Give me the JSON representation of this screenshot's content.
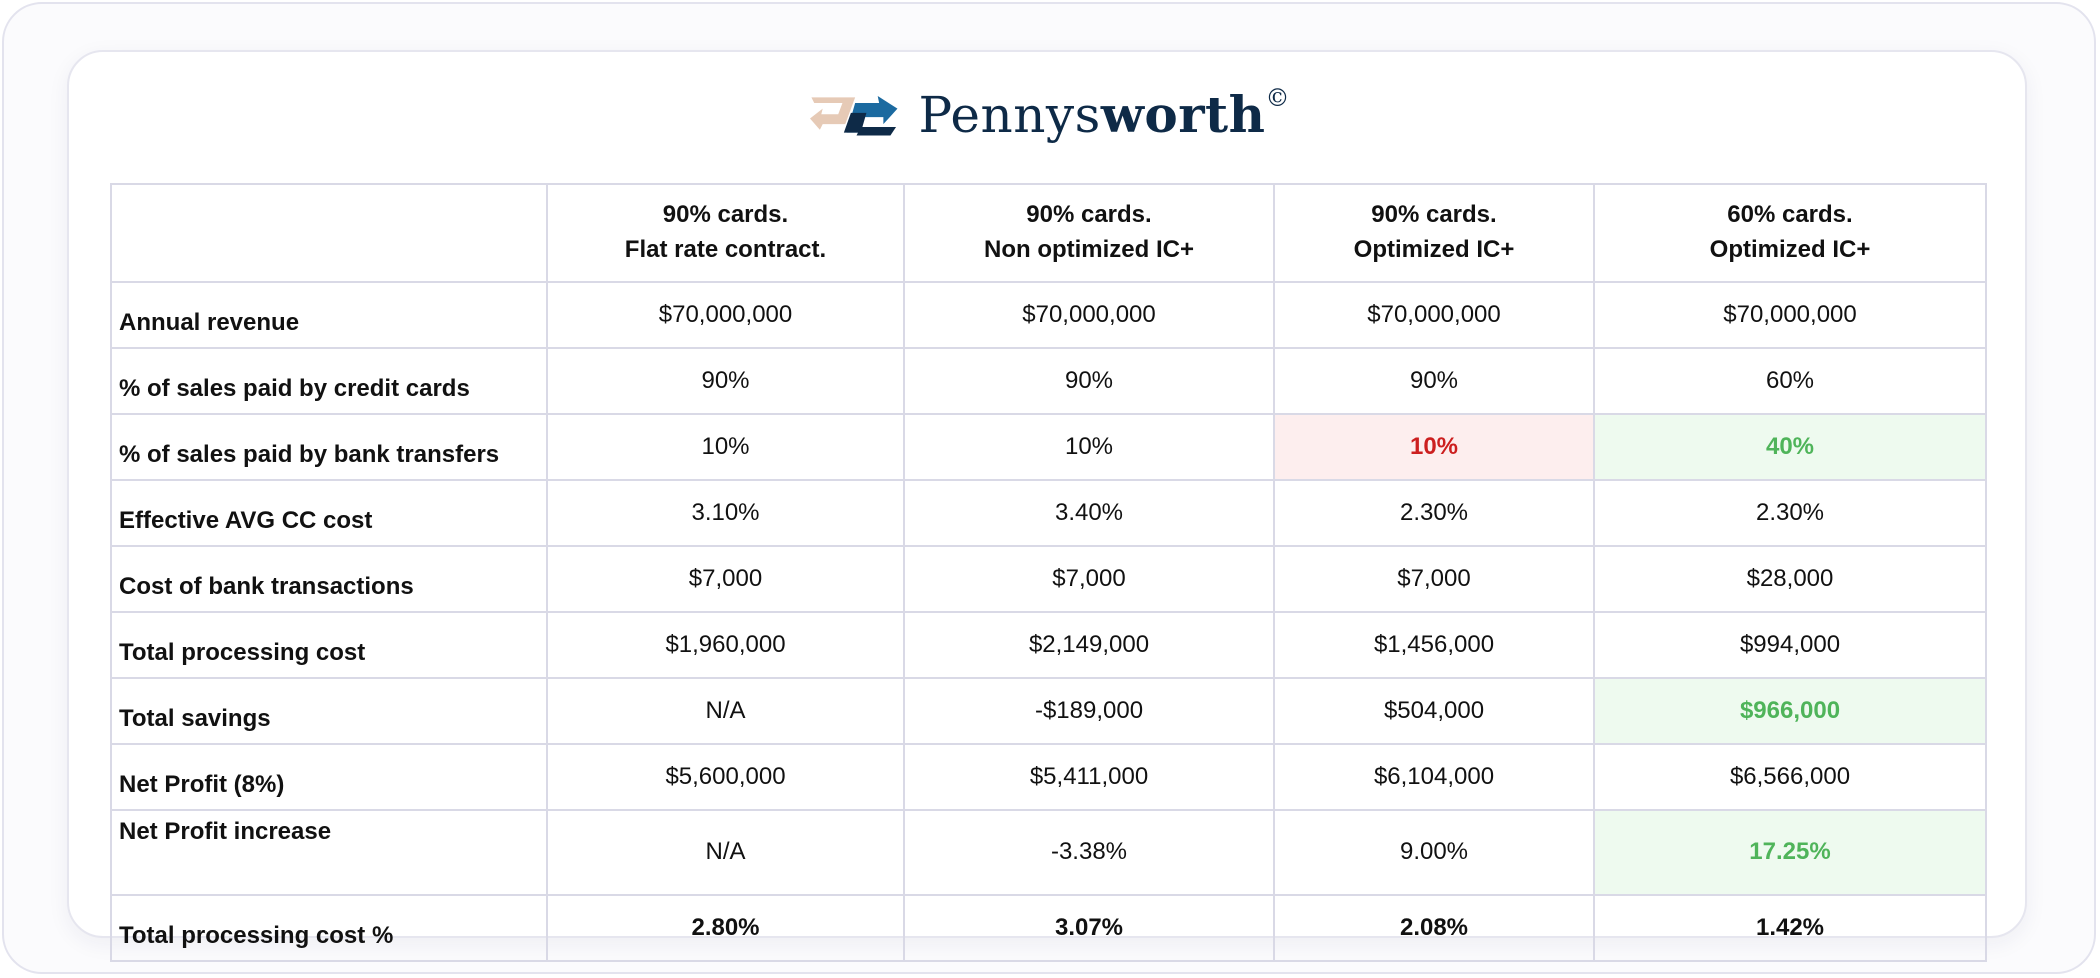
{
  "brand": {
    "name_light": "Pennys",
    "name_bold": "worth",
    "mark": "©",
    "logo_icon": "pennysworth-arrows-icon",
    "colors": {
      "navy": "#0e2a47",
      "blue": "#1b6aa0",
      "beige": "#e2c3ad"
    }
  },
  "table": {
    "headers": [
      {
        "line1": "",
        "line2": ""
      },
      {
        "line1": "90% cards.",
        "line2": "Flat rate contract."
      },
      {
        "line1": "90% cards.",
        "line2": "Non optimized IC+"
      },
      {
        "line1": "90% cards.",
        "line2": "Optimized IC+"
      },
      {
        "line1": "60% cards.",
        "line2": "Optimized IC+"
      }
    ],
    "rows": [
      {
        "label": "Annual revenue",
        "values": [
          "$70,000,000",
          "$70,000,000",
          "$70,000,000",
          "$70,000,000"
        ]
      },
      {
        "label": "% of sales paid by credit cards",
        "values": [
          "90%",
          "90%",
          "90%",
          "60%"
        ]
      },
      {
        "label": "% of sales paid by bank transfers",
        "values": [
          "10%",
          "10%",
          "10%",
          "40%"
        ]
      },
      {
        "label": "Effective AVG CC cost",
        "values": [
          "3.10%",
          "3.40%",
          "2.30%",
          "2.30%"
        ]
      },
      {
        "label": "Cost of bank transactions",
        "values": [
          "$7,000",
          "$7,000",
          "$7,000",
          "$28,000"
        ]
      },
      {
        "label": "Total processing cost",
        "values": [
          "$1,960,000",
          "$2,149,000",
          "$1,456,000",
          "$994,000"
        ]
      },
      {
        "label": "Total savings",
        "values": [
          "N/A",
          "-$189,000",
          "$504,000",
          "$966,000"
        ]
      },
      {
        "label": "Net Profit (8%)",
        "values": [
          "$5,600,000",
          "$5,411,000",
          "$6,104,000",
          "$6,566,000"
        ]
      },
      {
        "label": "Net Profit increase",
        "values": [
          "N/A",
          "-3.38%",
          "9.00%",
          "17.25%"
        ]
      },
      {
        "label": "Total processing cost %",
        "values": [
          "2.80%",
          "3.07%",
          "2.08%",
          "1.42%"
        ]
      }
    ],
    "highlight_colors": {
      "negative_bg": "#fdeeee",
      "negative_text": "#cc1f1f",
      "positive_bg": "#eefaef",
      "positive_text": "#4fb45a"
    }
  }
}
